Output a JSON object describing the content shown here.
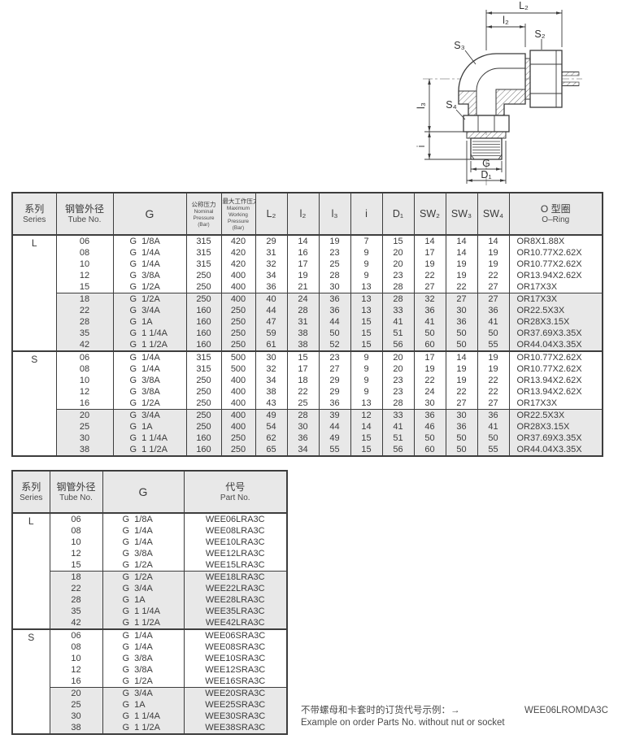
{
  "drawing": {
    "dim_labels": {
      "L2": "L₂",
      "l2": "l₂",
      "S2": "S₂",
      "S3": "S₃",
      "S4": "S₄",
      "l3": "l₃",
      "i": "i",
      "G": "G",
      "D1": "D₁"
    }
  },
  "spec_table": {
    "header": {
      "series_cn": "系列",
      "series_en": "Series",
      "tube_cn": "钢管外径",
      "tube_en": "Tube No.",
      "g_label": "G",
      "nominal_cn": "公称压力",
      "nominal_en": "Nominal Pressure (Bar)",
      "max_cn": "最大工作压力",
      "max_en": "Maximum Working Pressure (Bar)",
      "dims": [
        "L₂",
        "l₂",
        "l₃",
        "i",
        "D₁",
        "SW₂",
        "SW₃",
        "SW₄"
      ],
      "oring_cn": "O 型圈",
      "oring_en": "O–Ring"
    },
    "sections": [
      {
        "series": "L",
        "groups": [
          [
            [
              "06",
              "G  1/8A",
              "315",
              "420",
              "29",
              "14",
              "19",
              "7",
              "15",
              "14",
              "14",
              "14",
              "OR8X1.88X"
            ],
            [
              "08",
              "G  1/4A",
              "315",
              "420",
              "31",
              "16",
              "23",
              "9",
              "20",
              "17",
              "14",
              "19",
              "OR10.77X2.62X"
            ],
            [
              "10",
              "G  1/4A",
              "315",
              "420",
              "32",
              "17",
              "25",
              "9",
              "20",
              "19",
              "19",
              "19",
              "OR10.77X2.62X"
            ],
            [
              "12",
              "G  3/8A",
              "250",
              "400",
              "34",
              "19",
              "28",
              "9",
              "23",
              "22",
              "19",
              "22",
              "OR13.94X2.62X"
            ],
            [
              "15",
              "G  1/2A",
              "250",
              "400",
              "36",
              "21",
              "30",
              "13",
              "28",
              "27",
              "22",
              "27",
              "OR17X3X"
            ]
          ],
          [
            [
              "18",
              "G  1/2A",
              "250",
              "400",
              "40",
              "24",
              "36",
              "13",
              "28",
              "32",
              "27",
              "27",
              "OR17X3X"
            ],
            [
              "22",
              "G  3/4A",
              "160",
              "250",
              "44",
              "28",
              "36",
              "13",
              "33",
              "36",
              "30",
              "36",
              "OR22.5X3X"
            ],
            [
              "28",
              "G  1A",
              "160",
              "250",
              "47",
              "31",
              "44",
              "15",
              "41",
              "41",
              "36",
              "41",
              "OR28X3.15X"
            ],
            [
              "35",
              "G  1 1/4A",
              "160",
              "250",
              "59",
              "38",
              "50",
              "15",
              "51",
              "50",
              "50",
              "50",
              "OR37.69X3.35X"
            ],
            [
              "42",
              "G  1 1/2A",
              "160",
              "250",
              "61",
              "38",
              "52",
              "15",
              "56",
              "60",
              "50",
              "55",
              "OR44.04X3.35X"
            ]
          ]
        ]
      },
      {
        "series": "S",
        "groups": [
          [
            [
              "06",
              "G  1/4A",
              "315",
              "500",
              "30",
              "15",
              "23",
              "9",
              "20",
              "17",
              "14",
              "19",
              "OR10.77X2.62X"
            ],
            [
              "08",
              "G  1/4A",
              "315",
              "500",
              "32",
              "17",
              "27",
              "9",
              "20",
              "19",
              "19",
              "19",
              "OR10.77X2.62X"
            ],
            [
              "10",
              "G  3/8A",
              "250",
              "400",
              "34",
              "18",
              "29",
              "9",
              "23",
              "22",
              "19",
              "22",
              "OR13.94X2.62X"
            ],
            [
              "12",
              "G  3/8A",
              "250",
              "400",
              "38",
              "22",
              "29",
              "9",
              "23",
              "24",
              "22",
              "22",
              "OR13.94X2.62X"
            ],
            [
              "16",
              "G  1/2A",
              "250",
              "400",
              "43",
              "25",
              "36",
              "13",
              "28",
              "30",
              "27",
              "27",
              "OR17X3X"
            ]
          ],
          [
            [
              "20",
              "G  3/4A",
              "250",
              "400",
              "49",
              "28",
              "39",
              "12",
              "33",
              "36",
              "30",
              "36",
              "OR22.5X3X"
            ],
            [
              "25",
              "G  1A",
              "250",
              "400",
              "54",
              "30",
              "44",
              "14",
              "41",
              "46",
              "36",
              "41",
              "OR28X3.15X"
            ],
            [
              "30",
              "G  1 1/4A",
              "160",
              "250",
              "62",
              "36",
              "49",
              "15",
              "51",
              "50",
              "50",
              "50",
              "OR37.69X3.35X"
            ],
            [
              "38",
              "G  1 1/2A",
              "160",
              "250",
              "65",
              "34",
              "55",
              "15",
              "56",
              "60",
              "50",
              "55",
              "OR44.04X3.35X"
            ]
          ]
        ]
      }
    ]
  },
  "part_table": {
    "header": {
      "series_cn": "系列",
      "series_en": "Series",
      "tube_cn": "钢管外径",
      "tube_en": "Tube No.",
      "g_label": "G",
      "part_cn": "代号",
      "part_en": "Part No."
    },
    "sections": [
      {
        "series": "L",
        "groups": [
          [
            [
              "06",
              "G  1/8A",
              "WEE06LRA3C"
            ],
            [
              "08",
              "G  1/4A",
              "WEE08LRA3C"
            ],
            [
              "10",
              "G  1/4A",
              "WEE10LRA3C"
            ],
            [
              "12",
              "G  3/8A",
              "WEE12LRA3C"
            ],
            [
              "15",
              "G  1/2A",
              "WEE15LRA3C"
            ]
          ],
          [
            [
              "18",
              "G  1/2A",
              "WEE18LRA3C"
            ],
            [
              "22",
              "G  3/4A",
              "WEE22LRA3C"
            ],
            [
              "28",
              "G  1A",
              "WEE28LRA3C"
            ],
            [
              "35",
              "G  1 1/4A",
              "WEE35LRA3C"
            ],
            [
              "42",
              "G  1 1/2A",
              "WEE42LRA3C"
            ]
          ]
        ]
      },
      {
        "series": "S",
        "groups": [
          [
            [
              "06",
              "G  1/4A",
              "WEE06SRA3C"
            ],
            [
              "08",
              "G  1/4A",
              "WEE08SRA3C"
            ],
            [
              "10",
              "G  3/8A",
              "WEE10SRA3C"
            ],
            [
              "12",
              "G  3/8A",
              "WEE12SRA3C"
            ],
            [
              "16",
              "G  1/2A",
              "WEE16SRA3C"
            ]
          ],
          [
            [
              "20",
              "G  3/4A",
              "WEE20SRA3C"
            ],
            [
              "25",
              "G  1A",
              "WEE25SRA3C"
            ],
            [
              "30",
              "G  1 1/4A",
              "WEE30SRA3C"
            ],
            [
              "38",
              "G  1 1/2A",
              "WEE38SRA3C"
            ]
          ]
        ]
      }
    ]
  },
  "footer": {
    "note_cn": "不带螺母和卡套时的订货代号示例：→",
    "note_en": "Example on order Parts No. without nut or socket",
    "example_code": "WEE06LROMDA3C"
  },
  "colors": {
    "header_bg": "#e8e8e8",
    "shaded_row_bg": "#e8e8e8",
    "border": "#3d3d3d",
    "text": "#3a3a3a"
  }
}
